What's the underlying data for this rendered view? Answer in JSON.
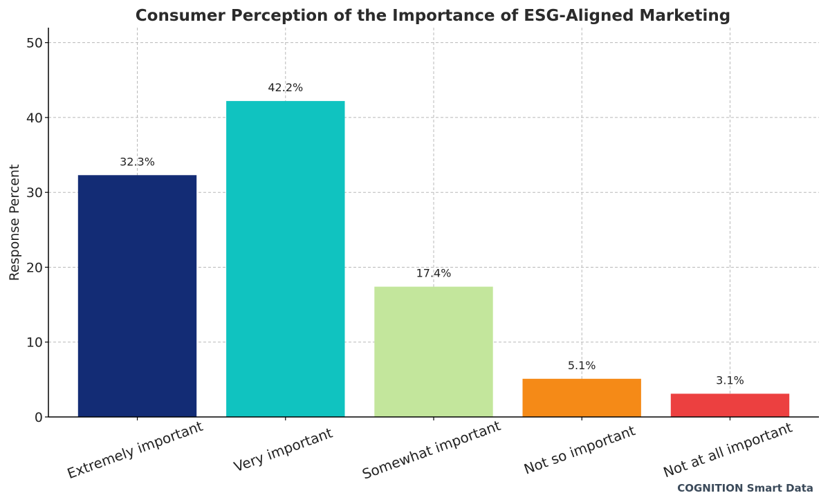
{
  "chart_data": {
    "type": "bar",
    "title": "Consumer Perception of the Importance of ESG-Aligned Marketing",
    "xlabel": "",
    "ylabel": "Response Percent",
    "ylim": [
      0,
      52
    ],
    "yticks": [
      0,
      10,
      20,
      30,
      40,
      50
    ],
    "grid": true,
    "categories": [
      "Extremely important",
      "Very important",
      "Somewhat important",
      "Not so important",
      "Not at all important"
    ],
    "values": [
      32.3,
      42.2,
      17.4,
      5.1,
      3.1
    ],
    "value_labels": [
      "32.3%",
      "42.2%",
      "17.4%",
      "5.1%",
      "3.1%"
    ],
    "colors": [
      "#132c75",
      "#10c3c0",
      "#c3e69c",
      "#f58a17",
      "#ec4040"
    ]
  },
  "credit": "COGNITION Smart Data"
}
